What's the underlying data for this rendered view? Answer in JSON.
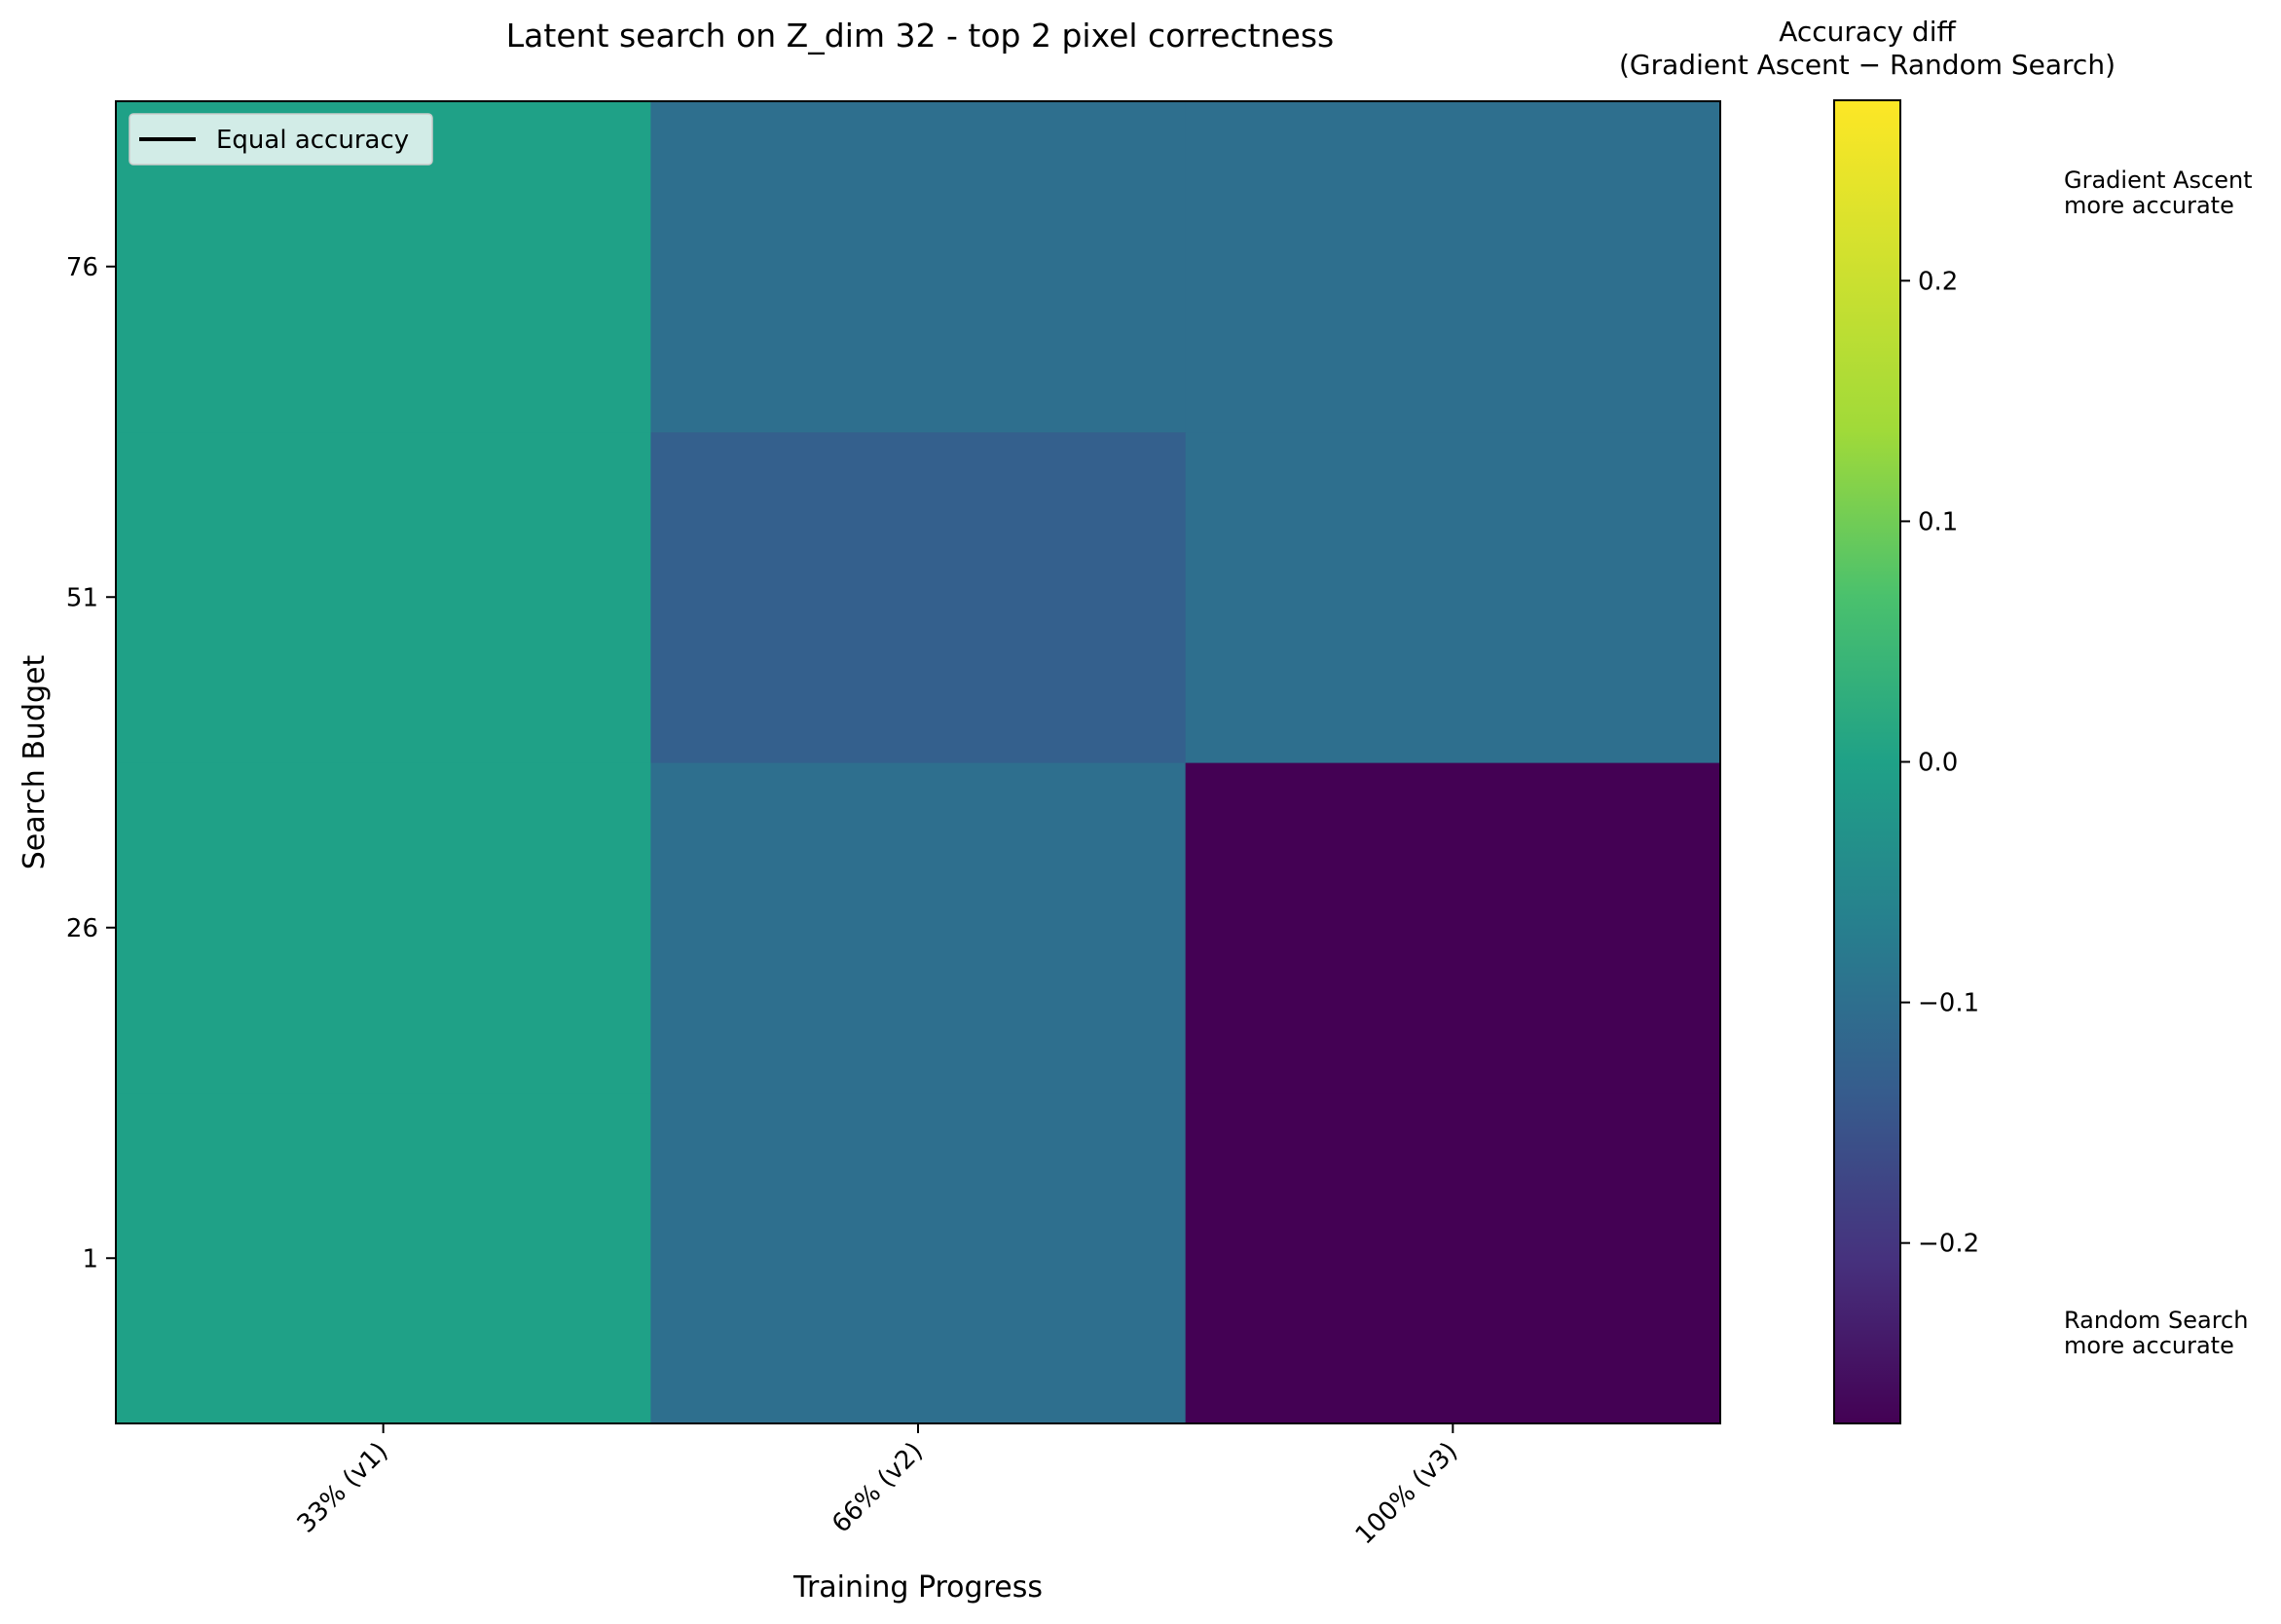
{
  "chart_data": {
    "type": "heatmap",
    "title": "Latent search on Z_dim 32 - top 2 pixel correctness",
    "xlabel": "Training Progress",
    "ylabel": "Search Budget",
    "x_categories": [
      "33% (v1)",
      "66% (v2)",
      "100% (v3)"
    ],
    "y_categories": [
      "1",
      "26",
      "51",
      "76"
    ],
    "values": [
      [
        0.0,
        -0.1,
        -0.28
      ],
      [
        0.0,
        -0.1,
        -0.28
      ],
      [
        0.0,
        -0.13,
        -0.1
      ],
      [
        0.0,
        -0.1,
        -0.1
      ]
    ],
    "colormap": "viridis",
    "colorbar": {
      "title_line1": "Accuracy diff",
      "title_line2": "(Gradient Ascent − Random Search)",
      "range": [
        -0.275,
        0.275
      ],
      "ticks": [
        0.2,
        0.1,
        0.0,
        -0.1,
        -0.2
      ],
      "tick_labels": [
        "0.2",
        "0.1",
        "0.0",
        "−0.1",
        "−0.2"
      ],
      "top_annotation_line1": "Gradient Ascent",
      "top_annotation_line2": "more accurate",
      "bottom_annotation_line1": "Random Search",
      "bottom_annotation_line2": "more accurate"
    },
    "legend": {
      "label": "Equal accuracy",
      "placement": "top-left"
    },
    "grid": false
  }
}
